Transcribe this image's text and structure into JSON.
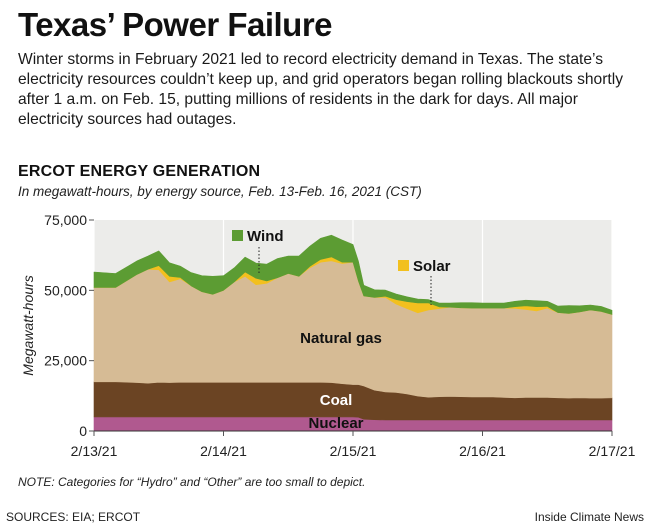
{
  "header": {
    "title": "Texas’ Power Failure",
    "dek": "Winter storms in February 2021 led to record electricity demand in Texas. The state’s electricity resources couldn’t keep up, and grid operators began rolling blackouts shortly after 1 a.m. on Feb. 15, putting millions of residents in the dark for days. All major electricity sources had outages."
  },
  "chart_data": {
    "type": "area",
    "stacked": true,
    "title": "ERCOT ENERGY GENERATION",
    "subtitle": "In megawatt-hours, by energy source, Feb. 13-Feb. 16, 2021 (CST)",
    "ylabel": "Megawatt-hours",
    "xlabel": "",
    "ylim": [
      0,
      75000
    ],
    "yticks": [
      0,
      25000,
      50000,
      75000
    ],
    "ytick_labels": [
      "0",
      "25,000",
      "50,000",
      "75,000"
    ],
    "xlim": [
      0,
      96
    ],
    "xticks": [
      0,
      24,
      48,
      72,
      96
    ],
    "xtick_labels": [
      "2/13/21",
      "2/14/21",
      "2/15/21",
      "2/16/21",
      "2/17/21"
    ],
    "grid": "vertical",
    "x_hours": [
      0,
      4,
      8,
      10,
      12,
      14,
      16,
      18,
      20,
      22,
      24,
      26,
      28,
      30,
      32,
      34,
      36,
      38,
      40,
      42,
      44,
      46,
      48,
      49,
      50,
      52,
      54,
      56,
      58,
      60,
      62,
      64,
      66,
      68,
      70,
      72,
      74,
      76,
      78,
      80,
      82,
      84,
      86,
      88,
      90,
      92,
      94,
      96
    ],
    "series": [
      {
        "name": "Nuclear",
        "color": "#b0598f",
        "values": [
          5000,
          5000,
          5000,
          5000,
          5000,
          5000,
          5000,
          5000,
          5000,
          5000,
          5000,
          5000,
          5000,
          5000,
          5000,
          5000,
          5000,
          5000,
          5000,
          5000,
          5000,
          5000,
          5000,
          4900,
          4200,
          4000,
          3900,
          3900,
          3900,
          3900,
          3900,
          3900,
          3900,
          3900,
          3900,
          3900,
          3900,
          3900,
          3900,
          3900,
          3900,
          3900,
          3900,
          3900,
          3900,
          3900,
          3900,
          3900
        ]
      },
      {
        "name": "Coal",
        "color": "#6b4423",
        "values": [
          12500,
          12500,
          12200,
          12000,
          12300,
          12200,
          12300,
          12300,
          12300,
          12300,
          12300,
          12300,
          12300,
          12300,
          12300,
          12300,
          12300,
          12300,
          12300,
          12300,
          12200,
          11800,
          11500,
          11600,
          11800,
          10500,
          10000,
          9800,
          9300,
          8500,
          8100,
          8300,
          8400,
          8300,
          8200,
          8200,
          8200,
          8000,
          7900,
          8000,
          8000,
          8000,
          7900,
          7800,
          7900,
          7800,
          7800,
          7900
        ]
      },
      {
        "name": "Natural gas",
        "color": "#d6bb95",
        "values": [
          33500,
          33500,
          38500,
          40500,
          40000,
          35800,
          36800,
          34300,
          32200,
          31300,
          32700,
          35700,
          37700,
          34700,
          35200,
          37200,
          38700,
          37700,
          40700,
          42700,
          43300,
          42700,
          43500,
          36800,
          32000,
          33000,
          33600,
          31400,
          30300,
          29600,
          31000,
          31300,
          31700,
          31600,
          31600,
          31600,
          31600,
          31800,
          31800,
          31300,
          30800,
          31800,
          30300,
          30100,
          30500,
          31300,
          30800,
          29600
        ]
      },
      {
        "name": "Solar",
        "color": "#f2c01e",
        "values": [
          0,
          0,
          0,
          0,
          1500,
          2000,
          500,
          0,
          0,
          0,
          0,
          0,
          1500,
          2300,
          800,
          0,
          0,
          0,
          500,
          1000,
          1400,
          500,
          0,
          0,
          0,
          0,
          400,
          1600,
          2500,
          3500,
          2500,
          600,
          0,
          0,
          0,
          0,
          0,
          0,
          600,
          1300,
          1500,
          600,
          0,
          0,
          0,
          0,
          0,
          0
        ]
      },
      {
        "name": "Wind",
        "color": "#5c9c33",
        "values": [
          5500,
          5000,
          4800,
          4700,
          5200,
          4800,
          4000,
          4700,
          5700,
          6400,
          5200,
          5000,
          5300,
          5400,
          6000,
          6800,
          6200,
          7200,
          7200,
          7500,
          7700,
          7900,
          6300,
          7100,
          3800,
          2700,
          2200,
          2000,
          1700,
          1400,
          1200,
          1400,
          1500,
          1800,
          1900,
          1800,
          1800,
          1800,
          1900,
          2000,
          2100,
          1800,
          2300,
          2800,
          2200,
          1800,
          1800,
          1500
        ]
      }
    ],
    "labels": {
      "wind": "Wind",
      "solar": "Solar",
      "natural_gas": "Natural gas",
      "coal": "Coal",
      "nuclear": "Nuclear"
    }
  },
  "note": "NOTE: Categories for “Hydro” and “Other” are too small to depict.",
  "footer": {
    "sources": "SOURCES: EIA; ERCOT",
    "credit": "Inside Climate News"
  }
}
